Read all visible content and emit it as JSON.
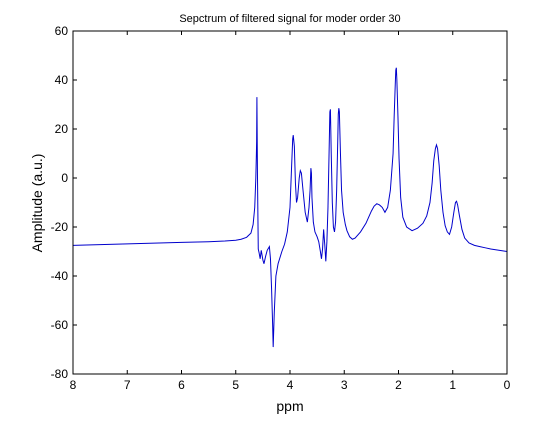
{
  "chart_data": {
    "type": "line",
    "title": "Sepctrum of filtered signal for moder order 30",
    "xlabel": "ppm",
    "ylabel": "Amplitude (a.u.)",
    "xlim": [
      8,
      0
    ],
    "ylim": [
      -80,
      60
    ],
    "x_reversed": true,
    "grid": false,
    "xticks": [
      8,
      7,
      6,
      5,
      4,
      3,
      2,
      1,
      0
    ],
    "yticks": [
      60,
      40,
      20,
      0,
      -20,
      -40,
      -60,
      -80
    ],
    "series": [
      {
        "color": "#0000cc",
        "points": [
          [
            8.0,
            -27.5
          ],
          [
            7.5,
            -27.2
          ],
          [
            7.0,
            -26.9
          ],
          [
            6.5,
            -26.6
          ],
          [
            6.0,
            -26.3
          ],
          [
            5.5,
            -26.0
          ],
          [
            5.2,
            -25.7
          ],
          [
            5.0,
            -25.4
          ],
          [
            4.9,
            -25.0
          ],
          [
            4.8,
            -24.2
          ],
          [
            4.72,
            -22.5
          ],
          [
            4.68,
            -19.0
          ],
          [
            4.65,
            -12.0
          ],
          [
            4.63,
            0.0
          ],
          [
            4.62,
            9.5
          ],
          [
            4.615,
            15.0
          ],
          [
            4.61,
            33.0
          ],
          [
            4.6,
            2.0
          ],
          [
            4.585,
            -29.0
          ],
          [
            4.57,
            -30.5
          ],
          [
            4.55,
            -33.0
          ],
          [
            4.53,
            -29.5
          ],
          [
            4.5,
            -33.5
          ],
          [
            4.48,
            -35.0
          ],
          [
            4.45,
            -32.0
          ],
          [
            4.42,
            -29.5
          ],
          [
            4.38,
            -28.0
          ],
          [
            4.36,
            -33.0
          ],
          [
            4.34,
            -45.0
          ],
          [
            4.32,
            -60.0
          ],
          [
            4.31,
            -69.0
          ],
          [
            4.29,
            -55.0
          ],
          [
            4.26,
            -40.0
          ],
          [
            4.22,
            -35.0
          ],
          [
            4.15,
            -30.0
          ],
          [
            4.1,
            -27.0
          ],
          [
            4.05,
            -22.0
          ],
          [
            4.0,
            -12.0
          ],
          [
            3.97,
            5.0
          ],
          [
            3.95,
            16.0
          ],
          [
            3.94,
            17.5
          ],
          [
            3.92,
            13.0
          ],
          [
            3.9,
            -2.0
          ],
          [
            3.88,
            -10.0
          ],
          [
            3.86,
            -8.0
          ],
          [
            3.83,
            0.0
          ],
          [
            3.81,
            3.0
          ],
          [
            3.79,
            2.0
          ],
          [
            3.76,
            -5.0
          ],
          [
            3.72,
            -14.0
          ],
          [
            3.68,
            -18.0
          ],
          [
            3.65,
            -12.0
          ],
          [
            3.63,
            -5.0
          ],
          [
            3.615,
            4.0
          ],
          [
            3.605,
            2.0
          ],
          [
            3.595,
            -8.0
          ],
          [
            3.57,
            -18.0
          ],
          [
            3.54,
            -22.0
          ],
          [
            3.5,
            -24.0
          ],
          [
            3.47,
            -26.0
          ],
          [
            3.44,
            -30.0
          ],
          [
            3.42,
            -33.0
          ],
          [
            3.4,
            -29.0
          ],
          [
            3.38,
            -21.0
          ],
          [
            3.36,
            -27.0
          ],
          [
            3.34,
            -34.0
          ],
          [
            3.32,
            -26.0
          ],
          [
            3.3,
            -12.0
          ],
          [
            3.28,
            10.0
          ],
          [
            3.265,
            27.0
          ],
          [
            3.255,
            28.0
          ],
          [
            3.24,
            10.0
          ],
          [
            3.22,
            -10.0
          ],
          [
            3.2,
            -20.0
          ],
          [
            3.18,
            -22.0
          ],
          [
            3.16,
            -18.0
          ],
          [
            3.14,
            -5.0
          ],
          [
            3.12,
            15.0
          ],
          [
            3.11,
            26.0
          ],
          [
            3.1,
            28.5
          ],
          [
            3.09,
            27.0
          ],
          [
            3.07,
            10.0
          ],
          [
            3.05,
            -5.0
          ],
          [
            3.02,
            -14.0
          ],
          [
            2.98,
            -19.0
          ],
          [
            2.95,
            -21.5
          ],
          [
            2.9,
            -24.0
          ],
          [
            2.85,
            -25.0
          ],
          [
            2.8,
            -24.5
          ],
          [
            2.7,
            -22.0
          ],
          [
            2.6,
            -18.5
          ],
          [
            2.5,
            -13.5
          ],
          [
            2.45,
            -11.5
          ],
          [
            2.4,
            -10.5
          ],
          [
            2.35,
            -11.0
          ],
          [
            2.3,
            -12.0
          ],
          [
            2.25,
            -14.0
          ],
          [
            2.2,
            -12.0
          ],
          [
            2.15,
            -5.0
          ],
          [
            2.1,
            10.0
          ],
          [
            2.08,
            25.0
          ],
          [
            2.06,
            38.0
          ],
          [
            2.05,
            44.0
          ],
          [
            2.04,
            45.0
          ],
          [
            2.03,
            40.0
          ],
          [
            2.01,
            25.0
          ],
          [
            1.99,
            8.0
          ],
          [
            1.96,
            -8.0
          ],
          [
            1.92,
            -16.0
          ],
          [
            1.85,
            -20.0
          ],
          [
            1.75,
            -21.5
          ],
          [
            1.65,
            -20.5
          ],
          [
            1.55,
            -18.5
          ],
          [
            1.48,
            -15.5
          ],
          [
            1.42,
            -10.0
          ],
          [
            1.38,
            -2.0
          ],
          [
            1.35,
            7.0
          ],
          [
            1.32,
            12.0
          ],
          [
            1.3,
            13.5
          ],
          [
            1.28,
            12.0
          ],
          [
            1.25,
            5.0
          ],
          [
            1.22,
            -5.0
          ],
          [
            1.18,
            -14.0
          ],
          [
            1.14,
            -19.5
          ],
          [
            1.1,
            -22.0
          ],
          [
            1.06,
            -23.0
          ],
          [
            1.02,
            -20.0
          ],
          [
            0.98,
            -14.0
          ],
          [
            0.95,
            -10.0
          ],
          [
            0.93,
            -9.5
          ],
          [
            0.91,
            -11.0
          ],
          [
            0.88,
            -15.0
          ],
          [
            0.83,
            -21.0
          ],
          [
            0.78,
            -24.5
          ],
          [
            0.7,
            -26.5
          ],
          [
            0.6,
            -27.5
          ],
          [
            0.5,
            -28.0
          ],
          [
            0.4,
            -28.5
          ],
          [
            0.3,
            -29.0
          ],
          [
            0.15,
            -29.5
          ],
          [
            0.0,
            -30.0
          ]
        ]
      }
    ]
  }
}
